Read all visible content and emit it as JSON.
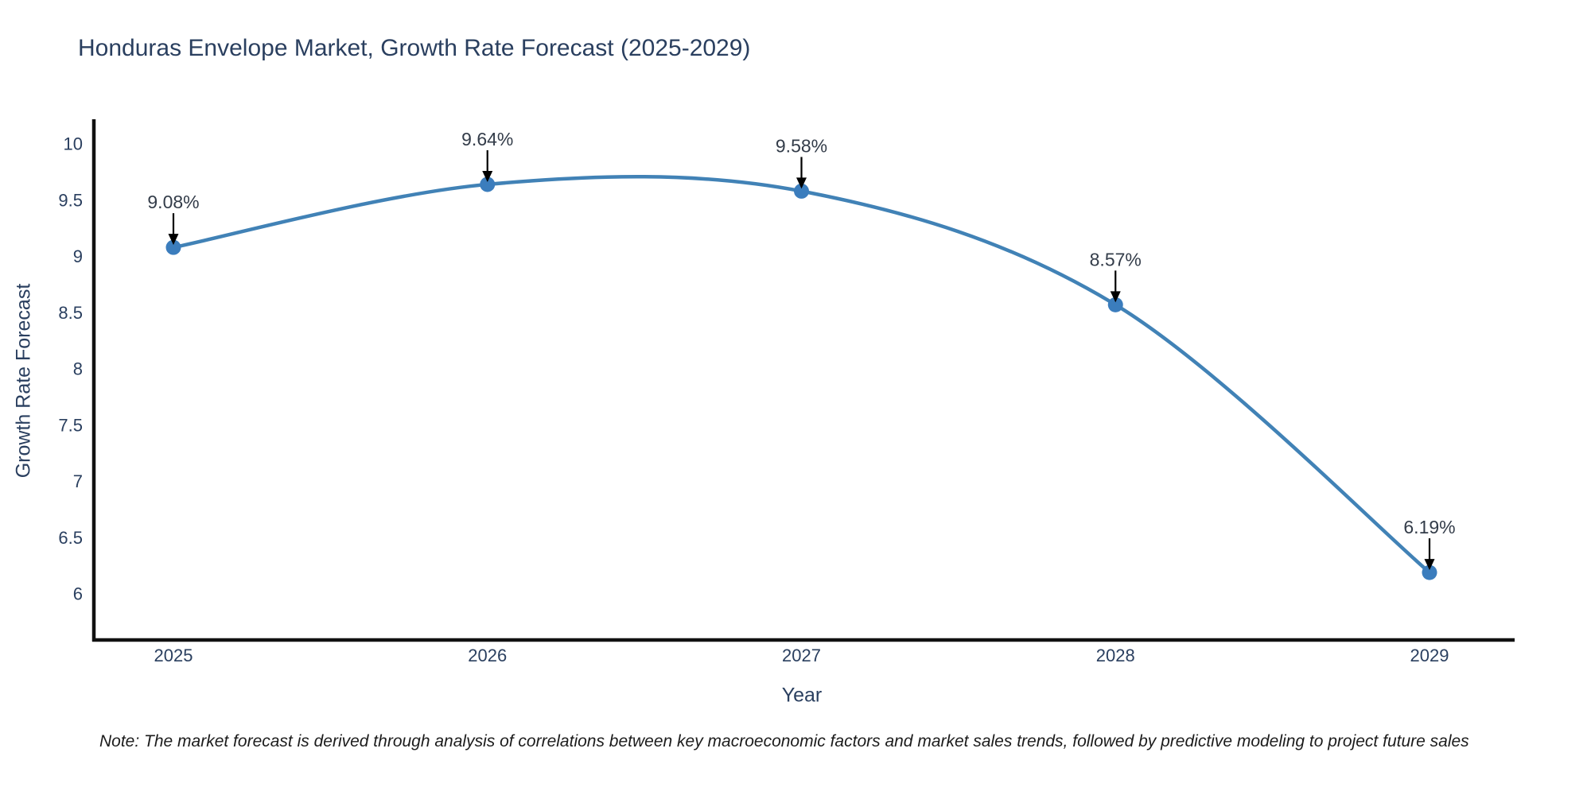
{
  "title": "Honduras Envelope Market, Growth Rate Forecast (2025-2029)",
  "note": "Note: The market forecast is derived through analysis of correlations between key macroeconomic factors and market sales trends, followed by predictive modeling to project future sales",
  "colors": {
    "title_text": "#2a3f5f",
    "tick_label": "#2a3f5f",
    "axis_line": "#111111",
    "line": "#4182b6",
    "marker": "#3b7dbd",
    "annotation_text": "#333c49",
    "arrow": "#000000",
    "note_text": "#1c1c1c",
    "background": "#ffffff"
  },
  "chart_data": {
    "type": "line",
    "title": "Honduras Envelope Market, Growth Rate Forecast (2025-2029)",
    "xlabel": "Year",
    "ylabel": "Growth Rate Forecast",
    "x": [
      2025,
      2026,
      2027,
      2028,
      2029
    ],
    "series": [
      {
        "name": "Growth Rate Forecast",
        "values": [
          9.08,
          9.64,
          9.58,
          8.57,
          6.19
        ]
      }
    ],
    "point_labels": [
      "9.08%",
      "9.64%",
      "9.58%",
      "8.57%",
      "6.19%"
    ],
    "y_ticks": [
      6,
      6.5,
      7,
      7.5,
      8,
      8.5,
      9,
      9.5,
      10
    ],
    "ylim": [
      5.6,
      10.2
    ],
    "line_shape": "spline",
    "grid": false,
    "legend_position": "none",
    "annotations_have_arrows": true
  }
}
